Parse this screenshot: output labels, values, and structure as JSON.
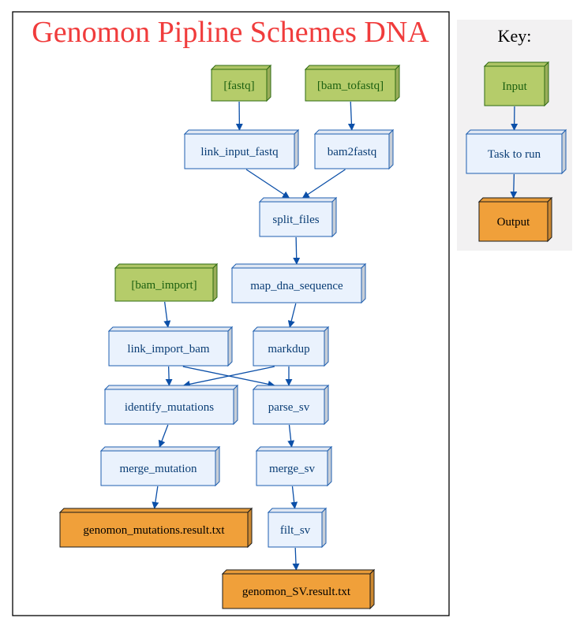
{
  "title": "Genomon Pipline Schemes DNA",
  "key": {
    "title": "Key:",
    "nodes": [
      {
        "id": "key-input",
        "label": "Input",
        "kind": "input"
      },
      {
        "id": "key-task",
        "label": "Task to run",
        "kind": "task"
      },
      {
        "id": "key-output",
        "label": "Output",
        "kind": "output"
      }
    ],
    "edges": [
      [
        "key-input",
        "key-task"
      ],
      [
        "key-task",
        "key-output"
      ]
    ]
  },
  "colors": {
    "title": "#f03c3c",
    "input_fill": "#b5cc6a",
    "input_stroke": "#2f6b12",
    "input_text": "#1c6010",
    "task_fill": "#eaf2fd",
    "task_stroke": "#1f5fb0",
    "task_text": "#0a3d75",
    "output_fill": "#f0a03a",
    "output_stroke": "#1a1a1a",
    "output_text": "#000000",
    "edge": "#0b4fa8",
    "key_bg": "#f2f1f2"
  },
  "nodes": [
    {
      "id": "fastq",
      "label": "[fastq]",
      "kind": "input"
    },
    {
      "id": "bam_tofastq",
      "label": "[bam_tofastq]",
      "kind": "input"
    },
    {
      "id": "link_input_fastq",
      "label": "link_input_fastq",
      "kind": "task"
    },
    {
      "id": "bam2fastq",
      "label": "bam2fastq",
      "kind": "task"
    },
    {
      "id": "split_files",
      "label": "split_files",
      "kind": "task"
    },
    {
      "id": "bam_import",
      "label": "[bam_import]",
      "kind": "input"
    },
    {
      "id": "map_dna_sequence",
      "label": "map_dna_sequence",
      "kind": "task"
    },
    {
      "id": "link_import_bam",
      "label": "link_import_bam",
      "kind": "task"
    },
    {
      "id": "markdup",
      "label": "markdup",
      "kind": "task"
    },
    {
      "id": "identify_mutations",
      "label": "identify_mutations",
      "kind": "task"
    },
    {
      "id": "parse_sv",
      "label": "parse_sv",
      "kind": "task"
    },
    {
      "id": "merge_mutation",
      "label": "merge_mutation",
      "kind": "task"
    },
    {
      "id": "merge_sv",
      "label": "merge_sv",
      "kind": "task"
    },
    {
      "id": "genomon_mutations_result",
      "label": "genomon_mutations.result.txt",
      "kind": "output"
    },
    {
      "id": "filt_sv",
      "label": "filt_sv",
      "kind": "task"
    },
    {
      "id": "genomon_SV_result",
      "label": "genomon_SV.result.txt",
      "kind": "output"
    }
  ],
  "edges": [
    [
      "fastq",
      "link_input_fastq"
    ],
    [
      "bam_tofastq",
      "bam2fastq"
    ],
    [
      "link_input_fastq",
      "split_files"
    ],
    [
      "bam2fastq",
      "split_files"
    ],
    [
      "split_files",
      "map_dna_sequence"
    ],
    [
      "map_dna_sequence",
      "markdup"
    ],
    [
      "bam_import",
      "link_import_bam"
    ],
    [
      "link_import_bam",
      "identify_mutations"
    ],
    [
      "link_import_bam",
      "parse_sv"
    ],
    [
      "markdup",
      "identify_mutations"
    ],
    [
      "markdup",
      "parse_sv"
    ],
    [
      "identify_mutations",
      "merge_mutation"
    ],
    [
      "parse_sv",
      "merge_sv"
    ],
    [
      "merge_mutation",
      "genomon_mutations_result"
    ],
    [
      "merge_sv",
      "filt_sv"
    ],
    [
      "filt_sv",
      "genomon_SV_result"
    ]
  ]
}
